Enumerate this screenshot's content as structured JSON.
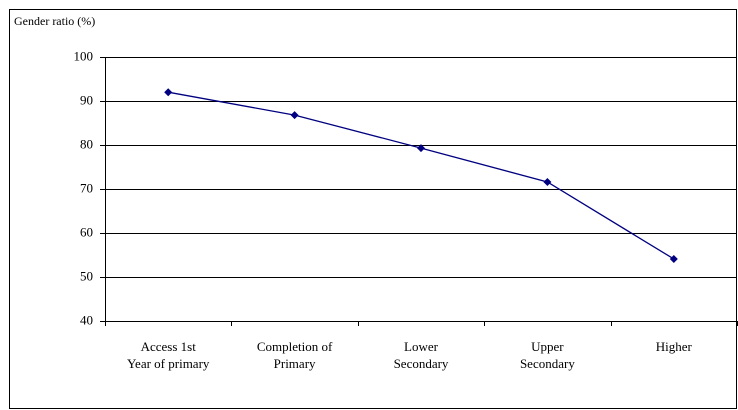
{
  "chart_data": {
    "type": "line",
    "y_axis_label": "Gender ratio (%)",
    "categories": [
      "Access 1st\nYear of primary",
      "Completion of\nPrimary",
      "Lower\nSecondary",
      "Upper\nSecondary",
      "Higher"
    ],
    "series": [
      {
        "name": "Gender ratio",
        "color": "#000080",
        "values": [
          92.0,
          86.8,
          79.3,
          71.6,
          54.1
        ]
      }
    ],
    "ylim": [
      40,
      100
    ],
    "yticks": [
      40,
      50,
      60,
      70,
      80,
      90,
      100
    ],
    "grid": true
  }
}
